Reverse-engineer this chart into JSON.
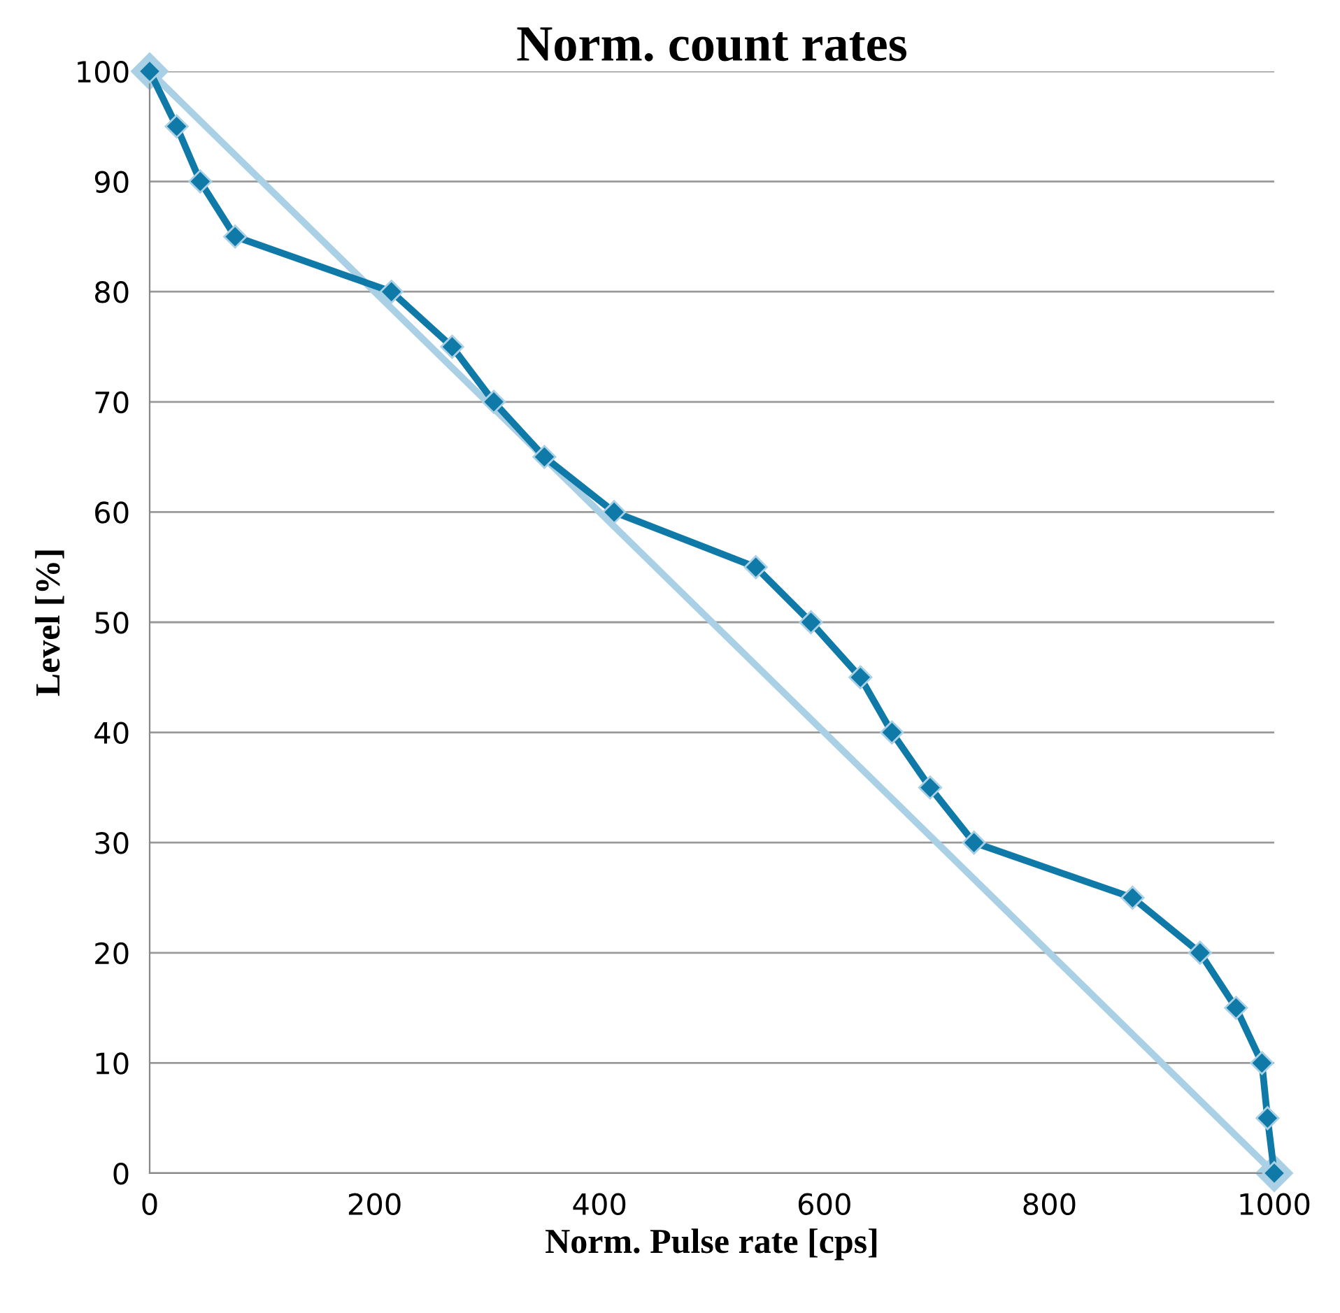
{
  "chart_data": {
    "type": "line",
    "title": "Norm. count rates",
    "xlabel": "Norm. Pulse rate [cps]",
    "ylabel": "Level [%]",
    "series": [
      {
        "color": "#0f79a8",
        "x": [
          0,
          24,
          45,
          76,
          215,
          269,
          306,
          351,
          413,
          539,
          588,
          632,
          660,
          694,
          733,
          874,
          934,
          966,
          989,
          994,
          1000
        ],
        "values": [
          100,
          95,
          90,
          85,
          80,
          75,
          70,
          65,
          60,
          55,
          50,
          45,
          40,
          35,
          30,
          25,
          20,
          15,
          10,
          5,
          0
        ]
      },
      {
        "color": "#a9d0e4",
        "x": [
          0,
          1000
        ],
        "values": [
          100,
          0
        ]
      }
    ],
    "xlim": [
      0,
      1000
    ],
    "xticks": [
      0,
      200,
      400,
      600,
      800,
      1000
    ],
    "ylim": [
      0,
      100
    ],
    "yticks": [
      0,
      10,
      20,
      30,
      40,
      50,
      60,
      70,
      80,
      90,
      100
    ],
    "grid": "y",
    "marker": "diamond",
    "line_style": "solid"
  }
}
